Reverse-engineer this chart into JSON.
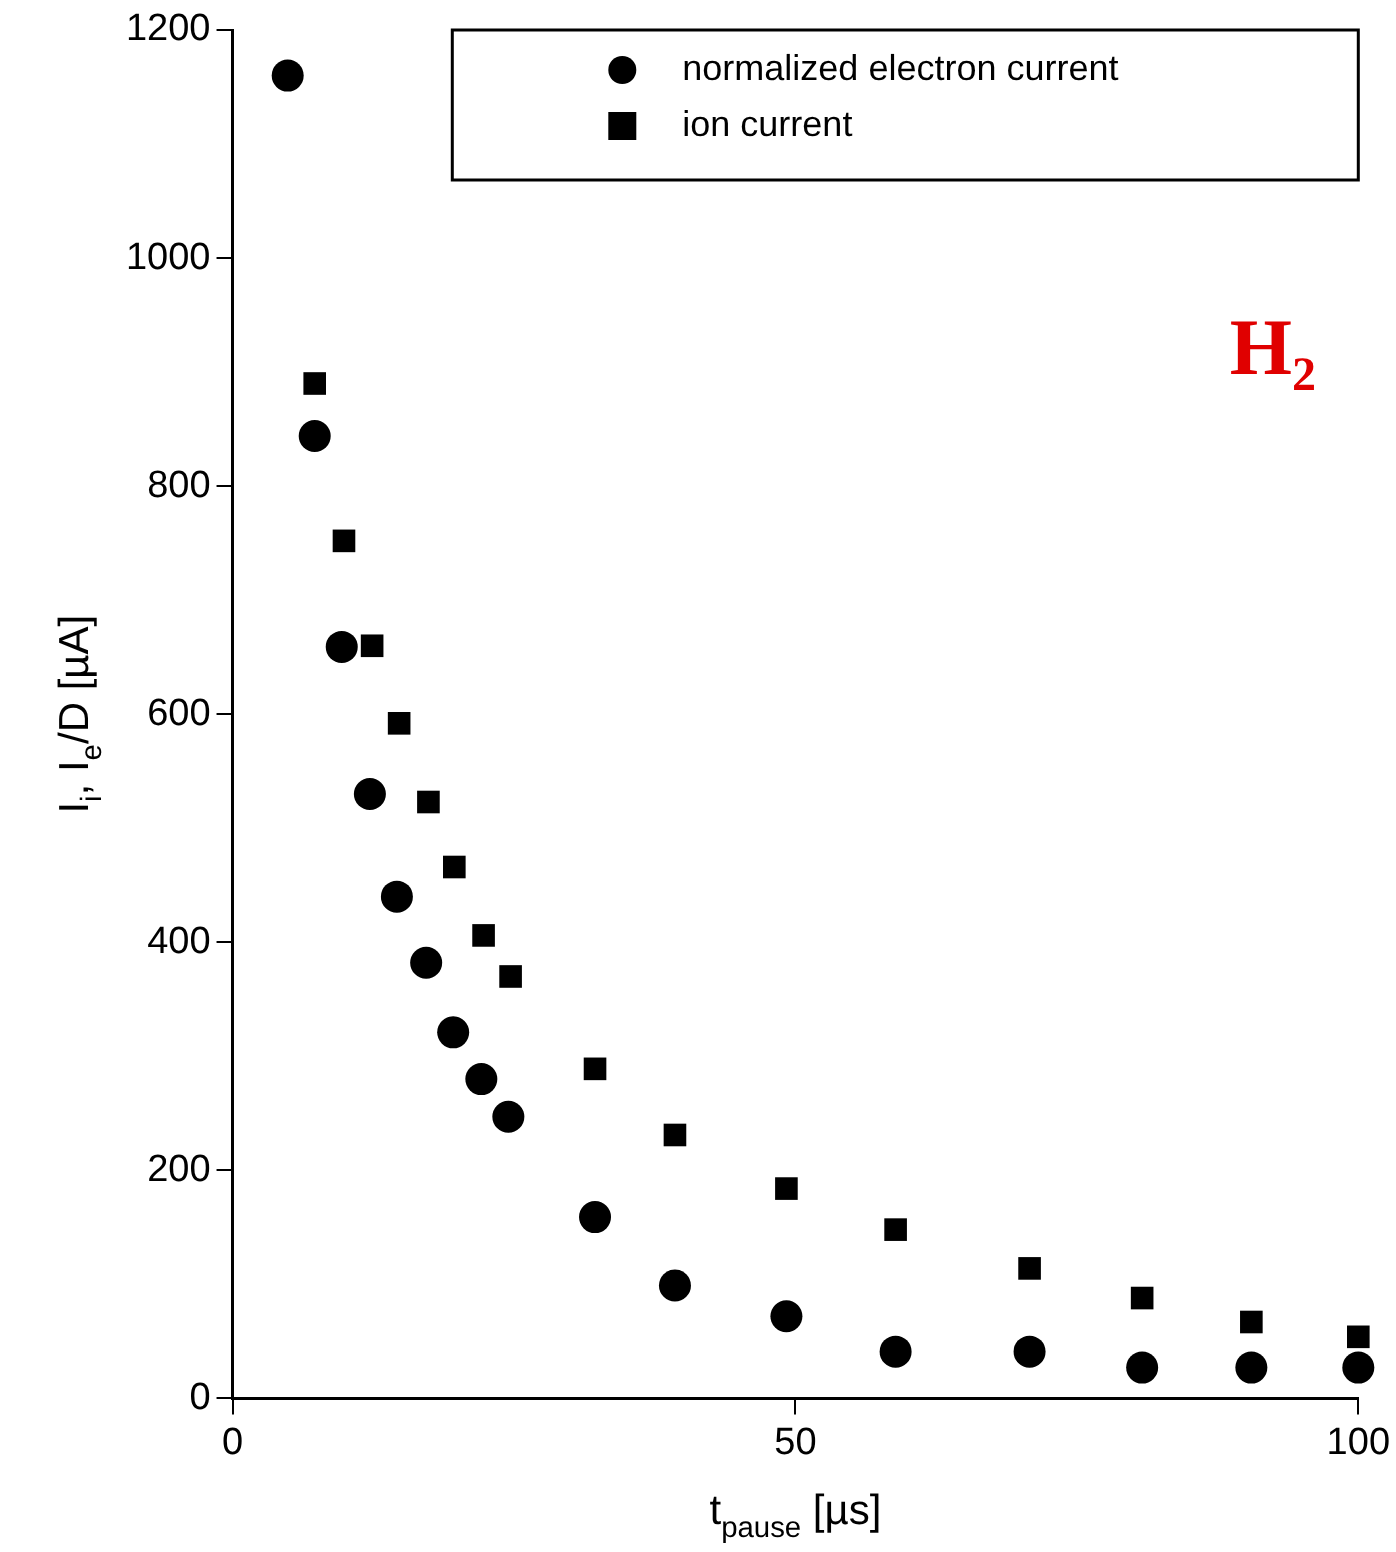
{
  "chart_data": {
    "type": "scatter",
    "xlabel": "t$_{pause}$ [µs]",
    "ylabel": "I$_{i}$, I$_{e}$/D [µA]",
    "xlim": [
      0,
      100
    ],
    "xticks": [
      0,
      50,
      100
    ],
    "ylim": [
      0,
      1200
    ],
    "yticks": [
      0,
      200,
      400,
      600,
      800,
      1000,
      1200
    ],
    "grid": false,
    "legend": "top right",
    "annotations": [
      "H₂"
    ],
    "series": [
      {
        "name": "normalized electron current",
        "color": "#000000",
        "marker": "circle",
        "x": [
          4.9,
          7.3,
          9.7,
          12.2,
          14.6,
          17.2,
          19.6,
          22.1,
          24.5,
          32.2,
          39.3,
          49.2,
          58.9,
          70.8,
          80.8,
          90.5,
          100
        ],
        "values": [
          1160,
          844,
          659,
          530,
          440,
          382,
          321,
          280,
          247,
          159,
          99,
          72,
          41,
          41,
          27,
          27,
          27
        ]
      },
      {
        "name": "ion current",
        "color": "#000000",
        "marker": "square",
        "x": [
          7.3,
          9.9,
          12.4,
          14.8,
          17.4,
          19.7,
          22.3,
          24.7,
          32.2,
          39.3,
          49.2,
          58.9,
          70.8,
          80.8,
          90.5,
          100
        ],
        "values": [
          890,
          752,
          660,
          592,
          523,
          466,
          406,
          370,
          289,
          231,
          184,
          148,
          114,
          88,
          67,
          54
        ]
      }
    ]
  }
}
